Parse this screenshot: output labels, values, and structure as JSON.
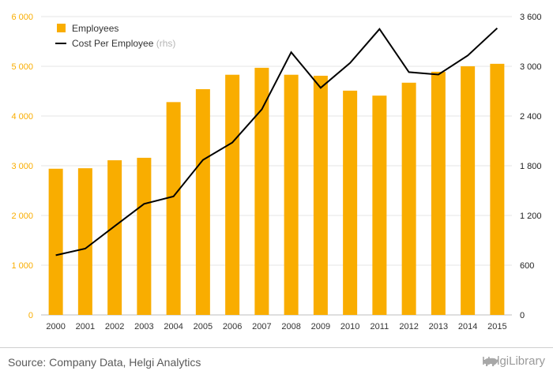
{
  "chart_data": {
    "type": "bar+line",
    "categories": [
      "2000",
      "2001",
      "2002",
      "2003",
      "2004",
      "2005",
      "2006",
      "2007",
      "2008",
      "2009",
      "2010",
      "2011",
      "2012",
      "2013",
      "2014",
      "2015"
    ],
    "series": [
      {
        "name": "Employees",
        "type": "bar",
        "axis": "left",
        "values": [
          2940,
          2950,
          3110,
          3160,
          4280,
          4540,
          4830,
          4970,
          4830,
          4810,
          4510,
          4410,
          4670,
          4890,
          5000,
          5050
        ]
      },
      {
        "name": "Cost Per Employee",
        "type": "line",
        "axis": "right",
        "values": [
          720,
          800,
          1070,
          1340,
          1430,
          1870,
          2080,
          2480,
          3170,
          2740,
          3040,
          3450,
          2930,
          2900,
          3130,
          3460
        ]
      }
    ],
    "legend": {
      "items": [
        "Employees",
        "Cost Per Employee"
      ],
      "rhs_note": "(rhs)",
      "placement": "top-left"
    },
    "y_left": {
      "range": [
        0,
        6000
      ],
      "ticks": [
        0,
        1000,
        2000,
        3000,
        4000,
        5000,
        6000
      ],
      "tick_labels": [
        "0",
        "1 000",
        "2 000",
        "3 000",
        "4 000",
        "5 000",
        "6 000"
      ]
    },
    "y_right": {
      "range": [
        0,
        3600
      ],
      "ticks": [
        0,
        600,
        1200,
        1800,
        2400,
        3000,
        3600
      ],
      "tick_labels": [
        "0",
        "600",
        "1 200",
        "1 800",
        "2 400",
        "3 000",
        "3 600"
      ]
    },
    "grid": "horizontal",
    "colors": {
      "bar": "#f9ad00",
      "line": "#000000",
      "left_axis": "#f9ad00",
      "right_axis": "#222222"
    }
  },
  "footer": {
    "source": "Source: Company Data, Helgi Analytics",
    "brand": "HelgiLibrary",
    "brand_icon": "bull-logo-icon"
  }
}
